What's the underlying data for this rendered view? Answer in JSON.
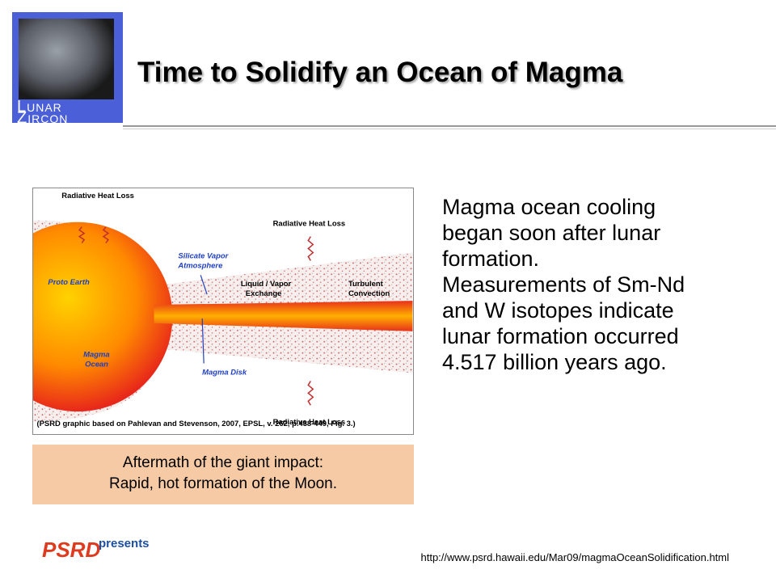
{
  "header": {
    "title": "Time to Solidify an Ocean of Magma",
    "logo": [
      "Lunar",
      "Zircon"
    ]
  },
  "figure": {
    "labels": {
      "heat_loss_left": "Radiative Heat Loss",
      "heat_loss_top": "Radiative Heat Loss",
      "heat_loss_bottom": "Radiative Heat Loss",
      "vapor": [
        "Silicate Vapor",
        "Atmosphere"
      ],
      "proto_earth": "Proto Earth",
      "exchange": [
        "Liquid / Vapor",
        "Exchange"
      ],
      "convection": [
        "Turbulent",
        "Convection"
      ],
      "magma_ocean": [
        "Magma",
        "Ocean"
      ],
      "magma_disk": "Magma Disk"
    },
    "credit": "(PSRD graphic based on Pahlevan and Stevenson, 2007, EPSL, v. 262, p.438-449, Fig. 3.)"
  },
  "caption": [
    "Aftermath of the giant impact:",
    "Rapid, hot formation of the Moon."
  ],
  "body": [
    "Magma ocean cooling",
    "began soon after lunar",
    "formation.",
    "Measurements of Sm-Nd",
    "and W isotopes indicate",
    "lunar formation occurred",
    "4.517 billion years ago."
  ],
  "footer": {
    "brand": "PSRD",
    "presents": "presents",
    "url": "http://www.psrd.hawaii.edu/Mar09/magmaOceanSolidification.html"
  }
}
